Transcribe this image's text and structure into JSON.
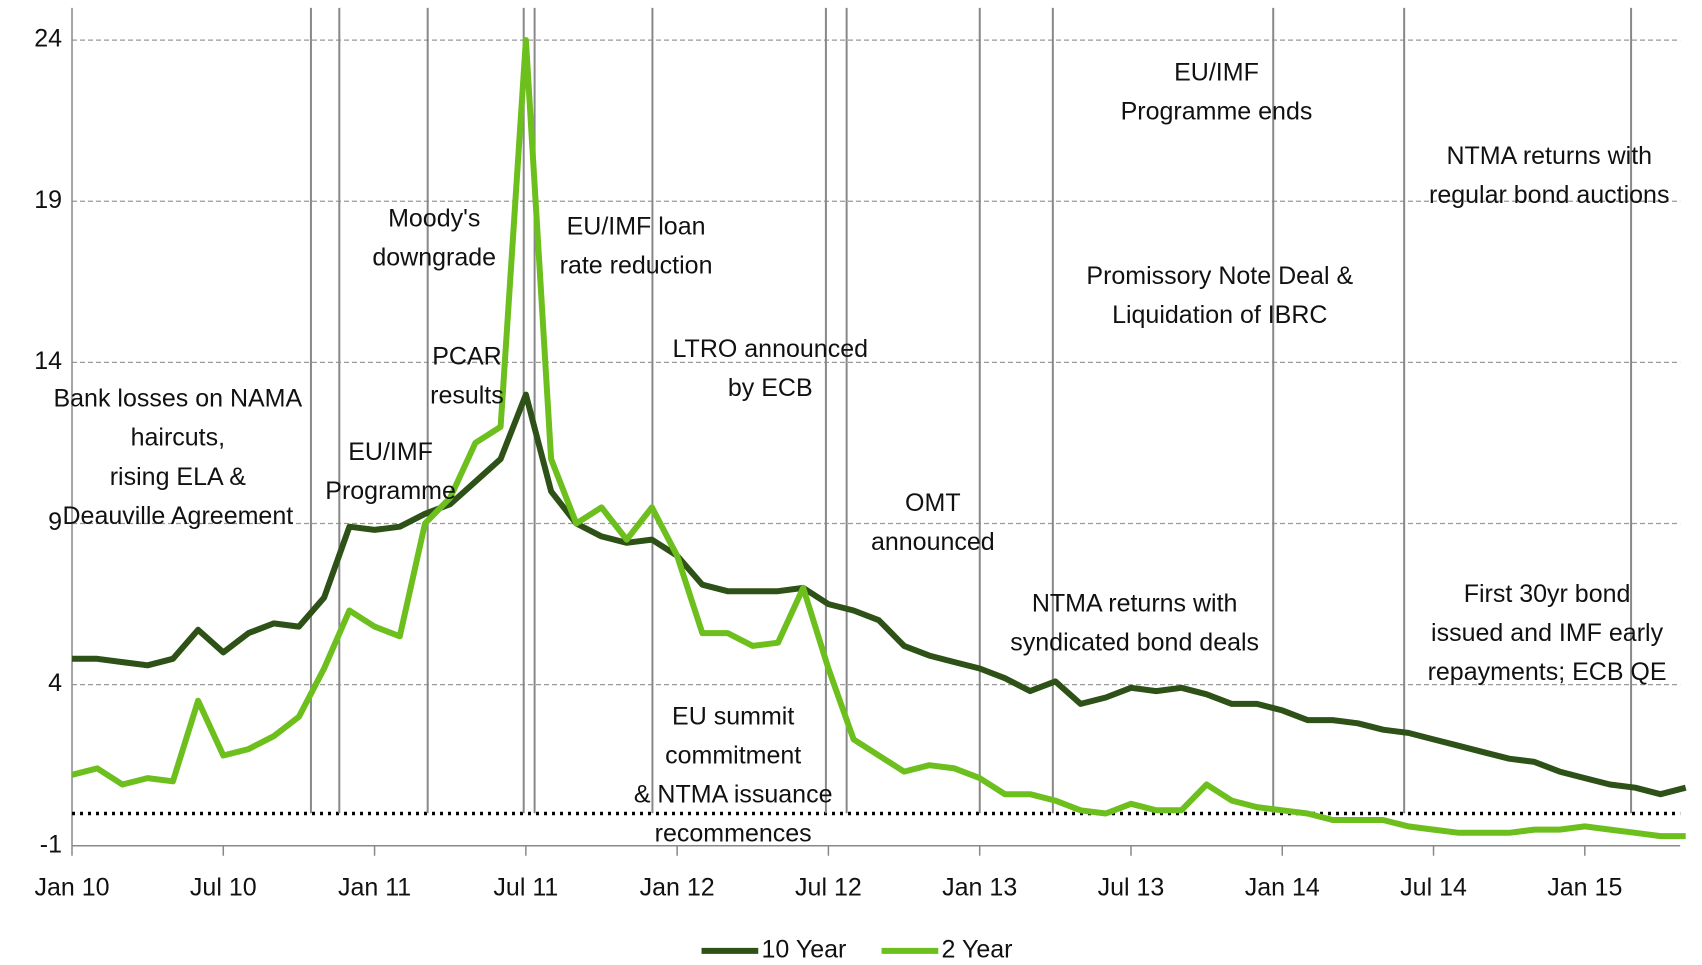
{
  "chart_data": {
    "type": "line",
    "categories": [
      "Jan 10",
      null,
      null,
      null,
      null,
      null,
      "Jul 10",
      null,
      null,
      null,
      null,
      null,
      "Jan 11",
      null,
      null,
      null,
      null,
      null,
      "Jul 11",
      null,
      null,
      null,
      null,
      null,
      "Jan 12",
      null,
      null,
      null,
      null,
      null,
      "Jul 12",
      null,
      null,
      null,
      null,
      null,
      "Jan 13",
      null,
      null,
      null,
      null,
      null,
      "Jul 13",
      null,
      null,
      null,
      null,
      null,
      "Jan 14",
      null,
      null,
      null,
      null,
      null,
      "Jul 14",
      null,
      null,
      null,
      null,
      null,
      "Jan 15",
      null,
      null,
      null,
      null
    ],
    "series": [
      {
        "name": "10 Year",
        "color": "#2e5117",
        "values": [
          4.8,
          4.8,
          4.7,
          4.6,
          4.8,
          5.7,
          5.0,
          5.6,
          5.9,
          5.8,
          6.7,
          8.9,
          8.8,
          8.9,
          9.3,
          9.6,
          10.3,
          11.0,
          13.0,
          10.0,
          9.0,
          8.6,
          8.4,
          8.5,
          8.0,
          7.1,
          6.9,
          6.9,
          6.9,
          7.0,
          6.5,
          6.3,
          6.0,
          5.2,
          4.9,
          4.7,
          4.5,
          4.2,
          3.8,
          4.1,
          3.4,
          3.6,
          3.9,
          3.8,
          3.9,
          3.7,
          3.4,
          3.4,
          3.2,
          2.9,
          2.9,
          2.8,
          2.6,
          2.5,
          2.3,
          2.1,
          1.9,
          1.7,
          1.6,
          1.3,
          1.1,
          0.9,
          0.8,
          0.6,
          0.8
        ]
      },
      {
        "name": "2 Year",
        "color": "#6cbf1c",
        "values": [
          1.2,
          1.4,
          0.9,
          1.1,
          1.0,
          3.5,
          1.8,
          2.0,
          2.4,
          3.0,
          4.5,
          6.3,
          5.8,
          5.5,
          9.0,
          9.8,
          11.5,
          12.0,
          24.0,
          11.0,
          9.0,
          9.5,
          8.5,
          9.5,
          8.0,
          5.6,
          5.6,
          5.2,
          5.3,
          7.0,
          4.5,
          2.3,
          1.8,
          1.3,
          1.5,
          1.4,
          1.1,
          0.6,
          0.6,
          0.4,
          0.1,
          0.0,
          0.3,
          0.1,
          0.1,
          0.9,
          0.4,
          0.2,
          0.1,
          0.0,
          -0.2,
          -0.2,
          -0.2,
          -0.4,
          -0.5,
          -0.6,
          -0.6,
          -0.6,
          -0.5,
          -0.5,
          -0.4,
          -0.5,
          -0.6,
          -0.7,
          -0.7
        ]
      }
    ],
    "ylim": [
      -1,
      25
    ],
    "yticks": [
      -1,
      4,
      9,
      14,
      19,
      24
    ],
    "grid": true,
    "reference_line": 0,
    "legend": "bottom",
    "annotations": [
      [
        "Bank losses on NAMA",
        "haircuts,",
        "rising ELA &",
        "Deauville Agreement"
      ],
      [
        "EU/IMF",
        "Programme"
      ],
      [
        "PCAR",
        "results"
      ],
      [
        "Moody's",
        "downgrade"
      ],
      [
        "EU/IMF loan",
        "rate reduction"
      ],
      [
        "LTRO announced",
        "by ECB"
      ],
      [
        "EU summit",
        "commitment",
        "& NTMA issuance",
        "recommences"
      ],
      [
        "OMT",
        "announced"
      ],
      [
        "NTMA returns with",
        "syndicated bond deals"
      ],
      [
        "Promissory Note Deal &",
        "Liquidation of IBRC"
      ],
      [
        "EU/IMF",
        "Programme  ends"
      ],
      [
        "NTMA returns with",
        "regular bond auctions"
      ],
      [
        "First 30yr bond",
        "issued and IMF early",
        "repayments; ECB QE"
      ]
    ]
  }
}
